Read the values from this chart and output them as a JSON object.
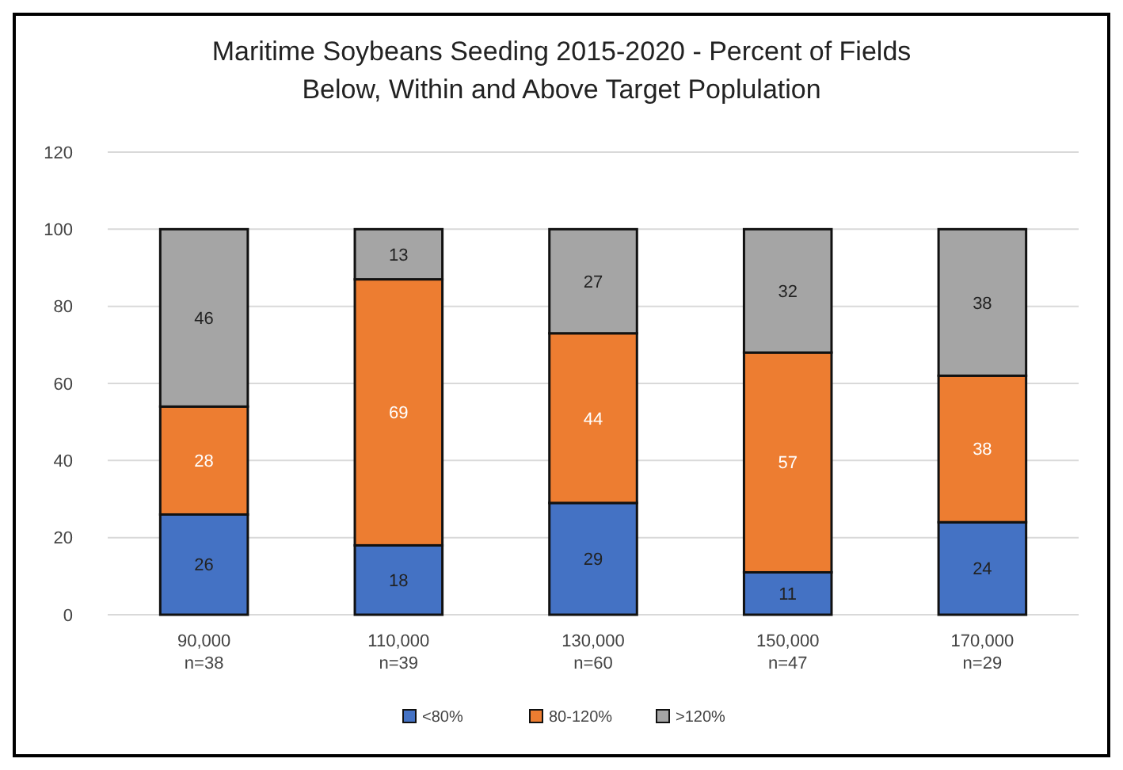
{
  "chart_data": {
    "type": "bar",
    "title": "Maritime Soybeans Seeding 2015-2020 - Percent of Fields\nBelow, Within and Above Target Poplulation",
    "categories": [
      "90,000\nn=38",
      "110,000\nn=39",
      "130,000\nn=60",
      "150,000\nn=47",
      "170,000\nn=29"
    ],
    "series": [
      {
        "name": "<80%",
        "color": "#4472c4",
        "values": [
          26,
          18,
          29,
          11,
          24
        ]
      },
      {
        "name": "80-120%",
        "color": "#ed7d31",
        "values": [
          28,
          69,
          44,
          57,
          38
        ]
      },
      {
        "name": ">120%",
        "color": "#a5a5a5",
        "values": [
          46,
          13,
          27,
          32,
          38
        ]
      }
    ],
    "stacked": true,
    "ylim": [
      0,
      120
    ],
    "yticks": [
      0,
      20,
      40,
      60,
      80,
      100,
      120
    ],
    "grid": "y",
    "legend": "bottom",
    "data_labels": true
  }
}
